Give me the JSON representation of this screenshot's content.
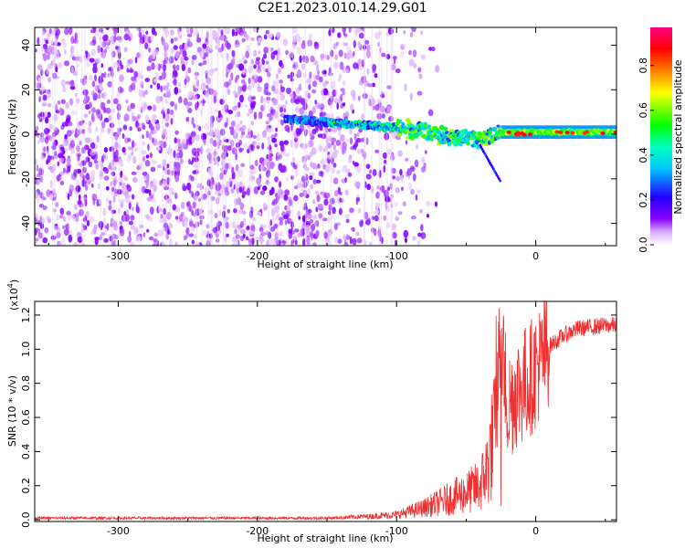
{
  "title": "C2E1.2023.010.14.29.G01",
  "chart_data": [
    {
      "type": "heatmap",
      "xlabel": "Height of straight line (km)",
      "ylabel": "Frequency (Hz)",
      "xlim": [
        -360,
        58
      ],
      "ylim": [
        -50,
        48
      ],
      "x_ticks": [
        "-300",
        "-200",
        "-100",
        "0"
      ],
      "x_tick_values": [
        -300,
        -200,
        -100,
        0
      ],
      "y_ticks": [
        "40",
        "20",
        "0",
        "-20",
        "-40"
      ],
      "y_tick_values": [
        40,
        20,
        0,
        -20,
        -40
      ],
      "colorbar": {
        "label": "Normalized spectral amplitude",
        "ticks": [
          "0.0",
          "0.2",
          "0.4",
          "0.6",
          "0.8"
        ],
        "tick_values": [
          0.0,
          0.2,
          0.4,
          0.6,
          0.8
        ],
        "range": [
          0,
          0.97
        ],
        "colormap": "rainbow (white-violet-blue-cyan-green-yellow-red-magenta)"
      },
      "signal_track": {
        "heights": [
          -180,
          -160,
          -140,
          -120,
          -100,
          -80,
          -60,
          -40,
          -30,
          -20,
          0,
          20,
          40,
          58
        ],
        "frequencies": [
          7,
          6,
          5,
          4,
          3,
          1,
          -1,
          -3,
          0,
          1,
          1,
          1,
          1,
          1
        ]
      },
      "noise_region": [
        -360,
        -100
      ]
    },
    {
      "type": "line",
      "xlabel": "Height of straight line (km)",
      "ylabel": "SNR (10 * v/v)",
      "y_scale_label": "(x10",
      "y_scale_exponent": "4",
      "y_scale_suffix": ")",
      "xlim": [
        -360,
        58
      ],
      "ylim": [
        -0.01,
        1.28
      ],
      "x_ticks": [
        "-300",
        "-200",
        "-100",
        "0"
      ],
      "x_tick_values": [
        -300,
        -200,
        -100,
        0
      ],
      "y_ticks": [
        "0.0",
        "0.2",
        "0.4",
        "0.6",
        "0.8",
        "1.0",
        "1.2"
      ],
      "y_tick_values": [
        0.0,
        0.2,
        0.4,
        0.6,
        0.8,
        1.0,
        1.2
      ],
      "color": "#f03030",
      "series": [
        {
          "x": [
            -360,
            -300,
            -250,
            -200,
            -150,
            -120,
            -100,
            -90,
            -80,
            -70,
            -60,
            -50,
            -40,
            -35,
            -30,
            -27,
            -25,
            -20,
            -15,
            -10,
            -5,
            0,
            5,
            10,
            20,
            30,
            40,
            50,
            58
          ],
          "y": [
            0.01,
            0.01,
            0.01,
            0.01,
            0.01,
            0.02,
            0.03,
            0.05,
            0.07,
            0.1,
            0.13,
            0.16,
            0.2,
            0.3,
            0.5,
            0.85,
            1.1,
            0.65,
            0.75,
            0.78,
            0.82,
            0.88,
            0.95,
            1.02,
            1.08,
            1.12,
            1.13,
            1.14,
            1.14
          ]
        }
      ]
    }
  ]
}
